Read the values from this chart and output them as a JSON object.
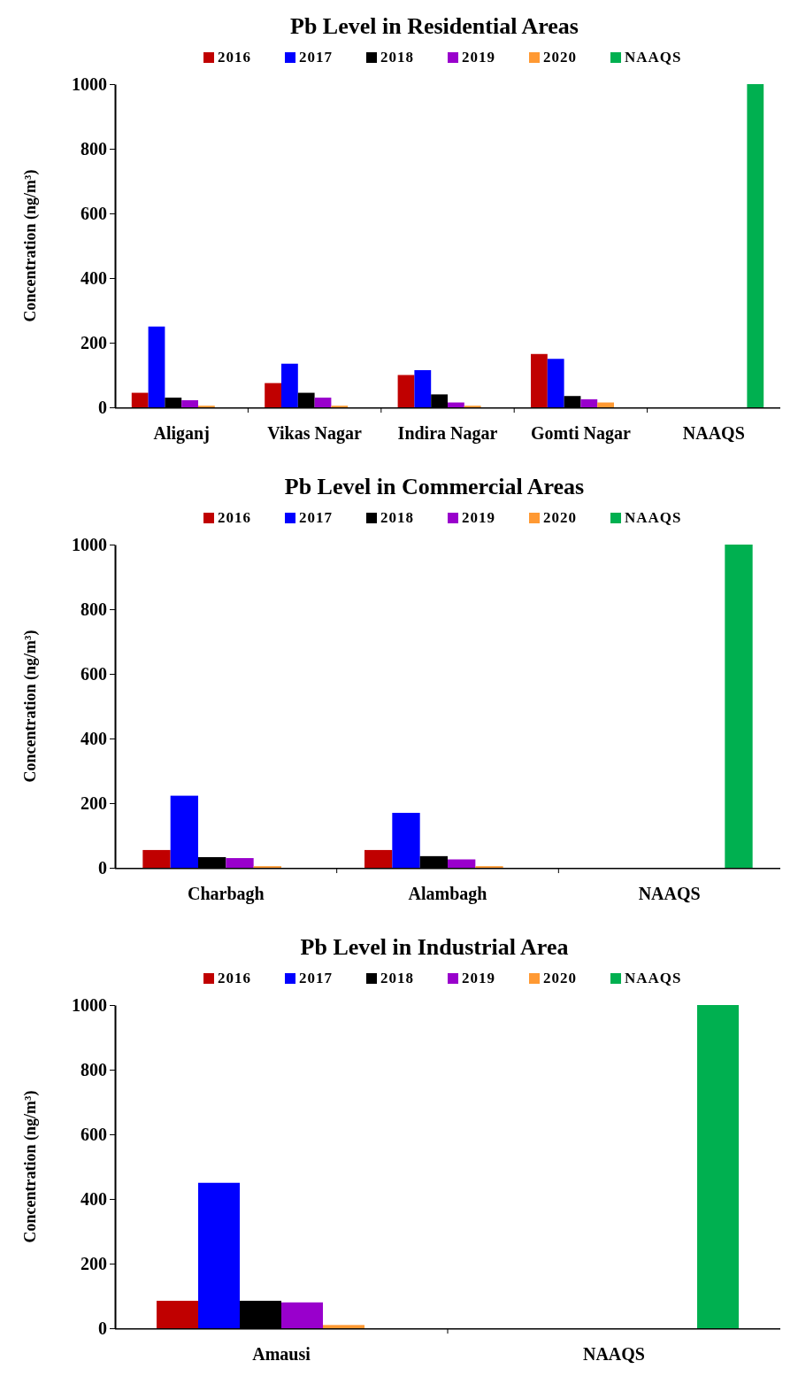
{
  "chart_data": [
    {
      "type": "bar",
      "title": "Pb Level in Residential Areas",
      "ylabel": "Concentration (ng/m³)",
      "categories": [
        "Aliganj",
        "Vikas Nagar",
        "Indira Nagar",
        "Gomti Nagar",
        "NAAQS"
      ],
      "ylim": [
        0,
        1000
      ],
      "yticks": [
        0,
        200,
        400,
        600,
        800,
        1000
      ],
      "grid": false,
      "legend": "top",
      "series": [
        {
          "name": "2016",
          "color": "#c00000",
          "values": [
            45,
            75,
            100,
            165,
            null
          ]
        },
        {
          "name": "2017",
          "color": "#0000ff",
          "values": [
            250,
            135,
            115,
            150,
            null
          ]
        },
        {
          "name": "2018",
          "color": "#000000",
          "values": [
            30,
            45,
            40,
            35,
            null
          ]
        },
        {
          "name": "2019",
          "color": "#9900cc",
          "values": [
            22,
            30,
            15,
            25,
            null
          ]
        },
        {
          "name": "2020",
          "color": "#ff9933",
          "values": [
            5,
            5,
            5,
            15,
            null
          ]
        },
        {
          "name": "NAAQS",
          "color": "#00b050",
          "values": [
            null,
            null,
            null,
            null,
            1000
          ]
        }
      ]
    },
    {
      "type": "bar",
      "title": "Pb Level in Commercial Areas",
      "ylabel": "Concentration (ng/m³)",
      "categories": [
        "Charbagh",
        "Alambagh",
        "NAAQS"
      ],
      "ylim": [
        0,
        1000
      ],
      "yticks": [
        0,
        200,
        400,
        600,
        800,
        1000
      ],
      "grid": false,
      "legend": "top",
      "series": [
        {
          "name": "2016",
          "color": "#c00000",
          "values": [
            55,
            55,
            null
          ]
        },
        {
          "name": "2017",
          "color": "#0000ff",
          "values": [
            223,
            170,
            null
          ]
        },
        {
          "name": "2018",
          "color": "#000000",
          "values": [
            33,
            36,
            null
          ]
        },
        {
          "name": "2019",
          "color": "#9900cc",
          "values": [
            30,
            26,
            null
          ]
        },
        {
          "name": "2020",
          "color": "#ff9933",
          "values": [
            5,
            5,
            null
          ]
        },
        {
          "name": "NAAQS",
          "color": "#00b050",
          "values": [
            null,
            null,
            1000
          ]
        }
      ]
    },
    {
      "type": "bar",
      "title": "Pb Level in Industrial Area",
      "ylabel": "Concentration (ng/m³)",
      "categories": [
        "Amausi",
        "NAAQS"
      ],
      "ylim": [
        0,
        1000
      ],
      "yticks": [
        0,
        200,
        400,
        600,
        800,
        1000
      ],
      "grid": false,
      "legend": "top",
      "series": [
        {
          "name": "2016",
          "color": "#c00000",
          "values": [
            85,
            null
          ]
        },
        {
          "name": "2017",
          "color": "#0000ff",
          "values": [
            450,
            null
          ]
        },
        {
          "name": "2018",
          "color": "#000000",
          "values": [
            85,
            null
          ]
        },
        {
          "name": "2019",
          "color": "#9900cc",
          "values": [
            80,
            null
          ]
        },
        {
          "name": "2020",
          "color": "#ff9933",
          "values": [
            10,
            null
          ]
        },
        {
          "name": "NAAQS",
          "color": "#00b050",
          "values": [
            null,
            1000
          ]
        }
      ]
    }
  ]
}
